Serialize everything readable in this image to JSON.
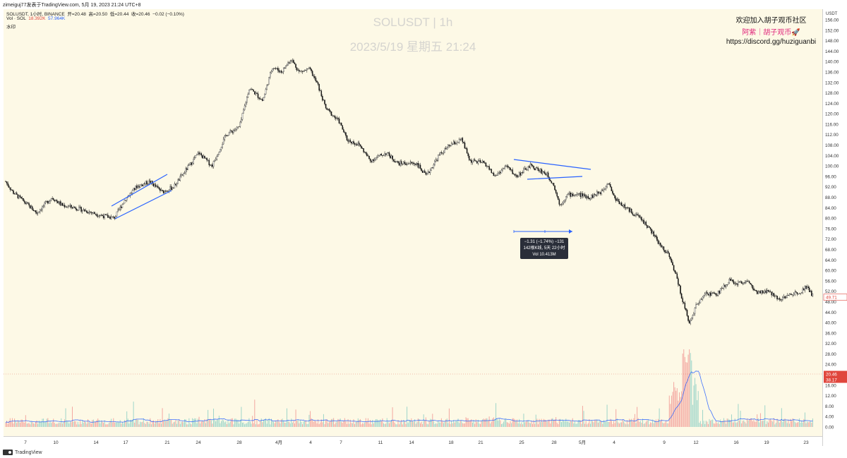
{
  "header": {
    "top_line": "zimeiguj77发表于TradingView.com, 5月 19, 2023 21:24 UTC+8",
    "symbol_line": {
      "symbol": "SOLUSDT, 1小时, BINANCE",
      "open_label": "开=",
      "open": "20.48",
      "high_label": "高=",
      "high": "20.50",
      "low_label": "低=",
      "low": "20.44",
      "close_label": "收=",
      "close": "20.46",
      "change": "−0.02 (−0.10%)"
    },
    "vol_line": {
      "label": "Vol · SOL",
      "value1": "18.392K",
      "value2": "57.964K"
    },
    "watermark_small": "水印"
  },
  "watermark": {
    "title": "SOLUSDT | 1h",
    "datetime": "2023/5/19 星期五 21:24"
  },
  "promo": {
    "line1": "欢迎加入胡子观币社区",
    "line2": "阿紫｜胡子观币🚀",
    "line3": "https://discord.gg/huziguanbi"
  },
  "measure_tooltip": {
    "line1": "−1.31 (−1.74%) −131",
    "line2": "142根K线, 5天 22小时",
    "line3": "Vol 10.413M"
  },
  "footer": {
    "brand": "TradingView"
  },
  "chart_data": {
    "type": "candlestick",
    "title": "SOLUSDT | 1h",
    "xlabel": "",
    "ylabel": "USDT",
    "price_axis_unit": "USDT",
    "price_ticks": [
      "156.00",
      "152.00",
      "148.00",
      "144.00",
      "140.00",
      "136.00",
      "132.00",
      "128.00",
      "124.00",
      "120.00",
      "116.00",
      "112.00",
      "108.00",
      "104.00",
      "100.00",
      "96.00",
      "92.00",
      "88.00",
      "84.00",
      "80.00",
      "76.00",
      "72.00",
      "68.00",
      "64.00",
      "60.00",
      "56.00",
      "52.00",
      "48.00",
      "44.00",
      "40.00",
      "36.00",
      "32.00",
      "28.00",
      "24.00",
      "20.00",
      "16.00",
      "12.00",
      "8.00",
      "4.00",
      "0.00"
    ],
    "price_range": [
      0,
      158
    ],
    "time_ticks": [
      "7",
      "10",
      "14",
      "17",
      "21",
      "24",
      "28",
      "4月",
      "4",
      "7",
      "11",
      "14",
      "18",
      "21",
      "25",
      "28",
      "5月",
      "4",
      "9",
      "12",
      "16",
      "19",
      "23"
    ],
    "last_price_label": "49.71",
    "crosshair_label_1": "20.46",
    "crosshair_label_2": "38.17",
    "price_path": [
      {
        "t": 0,
        "p": 94
      },
      {
        "t": 0.8,
        "p": 90
      },
      {
        "t": 2.5,
        "p": 85
      },
      {
        "t": 3.5,
        "p": 82
      },
      {
        "t": 5.2,
        "p": 88
      },
      {
        "t": 6.3,
        "p": 85
      },
      {
        "t": 7.8,
        "p": 84
      },
      {
        "t": 10.8,
        "p": 81
      },
      {
        "t": 12.2,
        "p": 80
      },
      {
        "t": 13.4,
        "p": 87
      },
      {
        "t": 14.7,
        "p": 92
      },
      {
        "t": 16.2,
        "p": 94
      },
      {
        "t": 17.6,
        "p": 90
      },
      {
        "t": 18.9,
        "p": 92
      },
      {
        "t": 20.4,
        "p": 99
      },
      {
        "t": 21.7,
        "p": 105
      },
      {
        "t": 23.2,
        "p": 100
      },
      {
        "t": 24.8,
        "p": 112
      },
      {
        "t": 26.3,
        "p": 115
      },
      {
        "t": 27.4,
        "p": 130
      },
      {
        "t": 28.9,
        "p": 125
      },
      {
        "t": 30.0,
        "p": 138
      },
      {
        "t": 31.0,
        "p": 136
      },
      {
        "t": 32.1,
        "p": 141
      },
      {
        "t": 33.0,
        "p": 136
      },
      {
        "t": 34.2,
        "p": 137
      },
      {
        "t": 35.1,
        "p": 131
      },
      {
        "t": 36.0,
        "p": 122
      },
      {
        "t": 37.5,
        "p": 117
      },
      {
        "t": 38.4,
        "p": 110
      },
      {
        "t": 39.8,
        "p": 108
      },
      {
        "t": 41.0,
        "p": 102
      },
      {
        "t": 42.8,
        "p": 105
      },
      {
        "t": 44.1,
        "p": 101
      },
      {
        "t": 46.2,
        "p": 101
      },
      {
        "t": 47.3,
        "p": 96
      },
      {
        "t": 48.7,
        "p": 104
      },
      {
        "t": 50.0,
        "p": 108
      },
      {
        "t": 51.3,
        "p": 110
      },
      {
        "t": 52.2,
        "p": 102
      },
      {
        "t": 53.9,
        "p": 101
      },
      {
        "t": 55.0,
        "p": 96
      },
      {
        "t": 56.3,
        "p": 100
      },
      {
        "t": 57.4,
        "p": 96
      },
      {
        "t": 59.0,
        "p": 100
      },
      {
        "t": 60.8,
        "p": 97
      },
      {
        "t": 61.6,
        "p": 93
      },
      {
        "t": 62.3,
        "p": 85
      },
      {
        "t": 63.2,
        "p": 89
      },
      {
        "t": 64.5,
        "p": 89
      },
      {
        "t": 65.7,
        "p": 88
      },
      {
        "t": 66.9,
        "p": 90
      },
      {
        "t": 67.8,
        "p": 94
      },
      {
        "t": 68.4,
        "p": 88
      },
      {
        "t": 69.7,
        "p": 84
      },
      {
        "t": 71.4,
        "p": 80
      },
      {
        "t": 72.6,
        "p": 75
      },
      {
        "t": 73.5,
        "p": 70
      },
      {
        "t": 74.6,
        "p": 66
      },
      {
        "t": 75.4,
        "p": 58
      },
      {
        "t": 76.0,
        "p": 50
      },
      {
        "t": 76.5,
        "p": 44
      },
      {
        "t": 76.9,
        "p": 40
      },
      {
        "t": 77.7,
        "p": 47
      },
      {
        "t": 78.8,
        "p": 51
      },
      {
        "t": 80.0,
        "p": 51
      },
      {
        "t": 81.3,
        "p": 56
      },
      {
        "t": 82.4,
        "p": 55
      },
      {
        "t": 83.4,
        "p": 56
      },
      {
        "t": 84.5,
        "p": 51
      },
      {
        "t": 85.6,
        "p": 52
      },
      {
        "t": 87.1,
        "p": 49
      },
      {
        "t": 88.5,
        "p": 51
      },
      {
        "t": 89.4,
        "p": 52
      },
      {
        "t": 90.1,
        "p": 54
      },
      {
        "t": 90.8,
        "p": 50
      }
    ],
    "annotations": [
      {
        "type": "rising-channel",
        "color": "#2962ff"
      },
      {
        "type": "descending-triangle",
        "color": "#2962ff"
      },
      {
        "type": "measure-range",
        "color": "#2962ff"
      }
    ],
    "series": [
      {
        "name": "SOLUSDT",
        "color_up": "#111111",
        "color_down": "#111111"
      },
      {
        "name": "Vol · SOL",
        "color_up": "#26a69a",
        "color_down": "#ef5350",
        "ma_color": "#2962ff"
      }
    ],
    "grid": false,
    "legend": "top-left"
  }
}
